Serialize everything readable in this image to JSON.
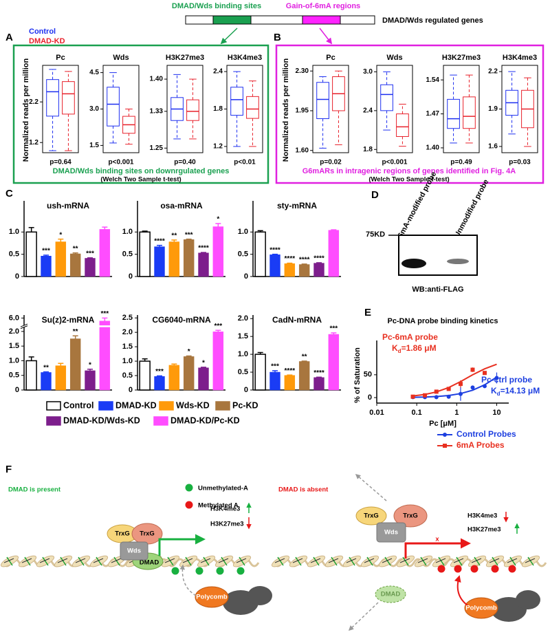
{
  "header": {
    "segments": [
      "DMAD/Wds binding sites",
      "Gain-of-6mA regions"
    ],
    "gene": "DMAD/Wds regulated genes"
  },
  "panel_letters": [
    "A",
    "B",
    "C",
    "D",
    "E",
    "F"
  ],
  "chart_data": [
    {
      "type": "box",
      "title": "Pc",
      "ylabel": "Normalized reads per million",
      "caption": "DMAD/Wds binding sites on downrgulated genes",
      "test": "(Welch Two Sample t-test)",
      "ylim": [
        0.95,
        3.1
      ],
      "yticks": [
        1.2,
        2.2
      ],
      "annotation": "p=0.64",
      "series": [
        {
          "name": "Control",
          "color": "#1d2ff0",
          "whisker_low": 1.0,
          "q1": 1.85,
          "median": 2.45,
          "q3": 2.75,
          "whisker_high": 3.0
        },
        {
          "name": "DMAD-KD",
          "color": "#e8202a",
          "whisker_low": 1.0,
          "q1": 1.9,
          "median": 2.4,
          "q3": 2.7,
          "whisker_high": 2.95
        }
      ]
    },
    {
      "type": "box",
      "title": "Wds",
      "ylim": [
        1.2,
        4.8
      ],
      "yticks": [
        1.5,
        {
          "value": 3,
          "label": "3.0"
        },
        4.5
      ],
      "annotation": "p<0.001",
      "series": [
        {
          "color": "#1d2ff0",
          "whisker_low": 1.6,
          "q1": 2.3,
          "median": 3.2,
          "q3": 3.9,
          "whisker_high": 4.5
        },
        {
          "color": "#e8202a",
          "whisker_low": 1.55,
          "q1": 2.0,
          "median": 2.35,
          "q3": 2.7,
          "whisker_high": 3.0
        }
      ]
    },
    {
      "type": "box",
      "title": "H3K27me3",
      "ylim": [
        1.24,
        1.43
      ],
      "yticks": [
        1.25,
        1.33,
        {
          "value": 1.4,
          "label": "1.40"
        }
      ],
      "annotation": "p=0.40",
      "series": [
        {
          "color": "#1d2ff0",
          "whisker_low": 1.27,
          "q1": 1.31,
          "median": 1.335,
          "q3": 1.36,
          "whisker_high": 1.41
        },
        {
          "color": "#e8202a",
          "whisker_low": 1.27,
          "q1": 1.31,
          "median": 1.33,
          "q3": 1.355,
          "whisker_high": 1.4
        }
      ]
    },
    {
      "type": "box",
      "title": "H3K4me3",
      "ylim": [
        1.1,
        2.5
      ],
      "yticks": [
        1.2,
        1.8,
        2.4
      ],
      "annotation": "p<0.01",
      "series": [
        {
          "color": "#1d2ff0",
          "whisker_low": 1.2,
          "q1": 1.7,
          "median": 1.95,
          "q3": 2.15,
          "whisker_high": 2.4
        },
        {
          "color": "#e8202a",
          "whisker_low": 1.2,
          "q1": 1.65,
          "median": 1.8,
          "q3": 2.0,
          "whisker_high": 2.25
        }
      ]
    },
    {
      "type": "box",
      "title": "Pc",
      "ylabel": "Normalized reads per million",
      "caption": "G6mARs in intragenic regions of genes identified in Fig. 4A",
      "test": "(Welch Two Sample t-test)",
      "ylim": [
        1.58,
        2.35
      ],
      "yticks": [
        {
          "value": 1.6,
          "label": "1.60"
        },
        1.95,
        {
          "value": 2.3,
          "label": "2.30"
        }
      ],
      "annotation": "p=0.02",
      "series": [
        {
          "color": "#1d2ff0",
          "whisker_low": 1.62,
          "q1": 1.88,
          "median": 2.05,
          "q3": 2.2,
          "whisker_high": 2.25
        },
        {
          "color": "#e8202a",
          "whisker_low": 1.65,
          "q1": 1.95,
          "median": 2.1,
          "q3": 2.25,
          "whisker_high": 2.3
        }
      ]
    },
    {
      "type": "box",
      "title": "Wds",
      "ylim": [
        1.75,
        3.1
      ],
      "yticks": [
        1.8,
        2.4,
        {
          "value": 3,
          "label": "3.0"
        }
      ],
      "annotation": "p<0.001",
      "series": [
        {
          "color": "#1d2ff0",
          "whisker_low": 2.1,
          "q1": 2.4,
          "median": 2.65,
          "q3": 2.8,
          "whisker_high": 3.0
        },
        {
          "color": "#e8202a",
          "whisker_low": 1.85,
          "q1": 2.0,
          "median": 2.15,
          "q3": 2.35,
          "whisker_high": 2.5
        }
      ]
    },
    {
      "type": "box",
      "title": "H3K27me3",
      "ylim": [
        1.39,
        1.57
      ],
      "yticks": [
        {
          "value": 1.4,
          "label": "1.40"
        },
        1.47,
        1.54
      ],
      "annotation": "p=0.49",
      "series": [
        {
          "color": "#1d2ff0",
          "whisker_low": 1.41,
          "q1": 1.44,
          "median": 1.46,
          "q3": 1.5,
          "whisker_high": 1.55
        },
        {
          "color": "#e8202a",
          "whisker_low": 1.41,
          "q1": 1.44,
          "median": 1.465,
          "q3": 1.505,
          "whisker_high": 1.55
        }
      ]
    },
    {
      "type": "box",
      "title": "H3K4me3",
      "ylim": [
        1.55,
        2.25
      ],
      "yticks": [
        1.6,
        1.9,
        2.2
      ],
      "annotation": "p=0.03",
      "series": [
        {
          "color": "#1d2ff0",
          "whisker_low": 1.7,
          "q1": 1.85,
          "median": 1.95,
          "q3": 2.05,
          "whisker_high": 2.2
        },
        {
          "color": "#e8202a",
          "whisker_low": 1.6,
          "q1": 1.75,
          "median": 1.9,
          "q3": 2.05,
          "whisker_high": 2.15
        }
      ]
    },
    {
      "type": "bar",
      "title": "ush-mRNA",
      "categories": [
        "Control",
        "DMAD-KD",
        "Wds-KD",
        "Pc-KD",
        "DMAD-KD/Wds-KD",
        "DMAD-KD/Pc-KD"
      ],
      "colors": [
        "#ffffff",
        "#1a3cf5",
        "#ff9a0a",
        "#a8763e",
        "#7d1e8c",
        "#ff4dff"
      ],
      "ylim": [
        0,
        1.7
      ],
      "yticks": [
        0,
        0.5,
        {
          "value": 1,
          "label": "1.0"
        }
      ],
      "values": [
        1.0,
        0.46,
        0.78,
        0.51,
        0.41,
        1.06
      ],
      "errors": [
        0.1,
        0.02,
        0.06,
        0.02,
        0.01,
        0.05
      ],
      "significance": [
        null,
        "***",
        "*",
        "**",
        "***",
        null
      ]
    },
    {
      "type": "bar",
      "title": "osa-mRNA",
      "colors": [
        "#ffffff",
        "#1a3cf5",
        "#ff9a0a",
        "#a8763e",
        "#7d1e8c",
        "#ff4dff"
      ],
      "ylim": [
        0,
        1.7
      ],
      "yticks": [
        0,
        0.5,
        {
          "value": 1,
          "label": "1.0"
        }
      ],
      "values": [
        1.0,
        0.67,
        0.78,
        0.83,
        0.53,
        1.12
      ],
      "errors": [
        0.02,
        0.03,
        0.04,
        0.01,
        0.01,
        0.07
      ],
      "significance": [
        null,
        "****",
        "**",
        "***",
        "****",
        "*"
      ]
    },
    {
      "type": "bar",
      "title": "sty-mRNA",
      "colors": [
        "#ffffff",
        "#1a3cf5",
        "#ff9a0a",
        "#a8763e",
        "#7d1e8c",
        "#ff4dff"
      ],
      "ylim": [
        0,
        1.7
      ],
      "yticks": [
        0,
        0.5,
        {
          "value": 1,
          "label": "1.0"
        }
      ],
      "values": [
        1.0,
        0.49,
        0.29,
        0.27,
        0.3,
        1.04
      ],
      "errors": [
        0.03,
        0.01,
        0.01,
        0.01,
        0.01,
        0.01
      ],
      "significance": [
        null,
        "****",
        "****",
        "****",
        "****",
        null
      ]
    },
    {
      "type": "bar",
      "title": "Su(z)2-mRNA",
      "colors": [
        "#ffffff",
        "#1a3cf5",
        "#ff9a0a",
        "#a8763e",
        "#7d1e8c",
        "#ff4dff"
      ],
      "ylim": [
        0,
        6.1
      ],
      "ybreak": [
        2.1,
        5.8
      ],
      "yticks": [
        0,
        0.5,
        {
          "value": 1,
          "label": "1.0"
        },
        1.5,
        {
          "value": 2,
          "label": "2.0"
        },
        {
          "value": 6,
          "label": "6.0"
        }
      ],
      "values": [
        1.0,
        0.6,
        0.83,
        1.75,
        0.66,
        5.9
      ],
      "errors": [
        0.13,
        0.02,
        0.08,
        0.1,
        0.05,
        0.1
      ],
      "significance": [
        null,
        "**",
        null,
        "**",
        "*",
        "***"
      ]
    },
    {
      "type": "bar",
      "title": "CG6040-mRNA",
      "colors": [
        "#ffffff",
        "#1a3cf5",
        "#ff9a0a",
        "#a8763e",
        "#7d1e8c",
        "#ff4dff"
      ],
      "ylim": [
        0,
        2.6
      ],
      "yticks": [
        0,
        0.5,
        {
          "value": 1,
          "label": "1.0"
        },
        1.5,
        {
          "value": 2,
          "label": "2.0"
        },
        2.5
      ],
      "values": [
        1.0,
        0.47,
        0.86,
        1.16,
        0.77,
        2.02
      ],
      "errors": [
        0.08,
        0.02,
        0.04,
        0.02,
        0.02,
        0.05
      ],
      "significance": [
        null,
        "***",
        null,
        "*",
        "*",
        "***"
      ]
    },
    {
      "type": "bar",
      "title": "CadN-mRNA",
      "colors": [
        "#ffffff",
        "#1a3cf5",
        "#ff9a0a",
        "#a8763e",
        "#7d1e8c",
        "#ff4dff"
      ],
      "ylim": [
        0,
        2.1
      ],
      "yticks": [
        0,
        0.5,
        {
          "value": 1,
          "label": "1.0"
        },
        1.5,
        {
          "value": 2,
          "label": "2.0"
        }
      ],
      "values": [
        1.0,
        0.5,
        0.41,
        0.8,
        0.35,
        1.56
      ],
      "errors": [
        0.05,
        0.04,
        0.01,
        0.01,
        0.01,
        0.04
      ],
      "significance": [
        null,
        "***",
        "****",
        "**",
        "****",
        "***"
      ]
    },
    {
      "type": "scatter",
      "title": "Pc-DNA probe binding kinetics",
      "xlabel": "Pc [μM]",
      "ylabel": "% of Saturation",
      "xscale": "log",
      "xlim": [
        0.01,
        20
      ],
      "xticks": [
        0.01,
        0.1,
        1,
        10
      ],
      "ylim": [
        -12,
        110
      ],
      "yticks": [
        0,
        50
      ],
      "series": [
        {
          "name": "Control Probes",
          "color": "#1d3fe0",
          "marker": "circle",
          "x": [
            0.08,
            0.16,
            0.31,
            0.63,
            1.25,
            2.5,
            5,
            10
          ],
          "values": [
            1,
            1,
            1,
            2,
            8,
            22,
            25,
            43
          ],
          "errors": [
            1,
            1,
            1,
            1,
            15,
            4,
            3,
            12
          ],
          "fit": {
            "x": [
              0.08,
              0.16,
              0.31,
              0.63,
              1.25,
              2.5,
              5,
              10
            ],
            "values": [
              0.6,
              1.2,
              2.3,
              4.6,
              8.8,
              16.2,
              28,
              45
            ]
          }
        },
        {
          "name": "6mA Probes",
          "color": "#e83020",
          "marker": "square",
          "x": [
            0.08,
            0.16,
            0.31,
            0.63,
            1.25,
            2.5,
            5
          ],
          "values": [
            2,
            5,
            13,
            19,
            30,
            61,
            54
          ],
          "errors": [
            2,
            3,
            3,
            4,
            8,
            5,
            2
          ],
          "fit": {
            "x": [
              0.08,
              0.16,
              0.31,
              0.63,
              1.25,
              2.5,
              5,
              10
            ],
            "values": [
              3.6,
              6.9,
              12.4,
              22,
              35,
              50,
              63,
              73
            ]
          }
        }
      ],
      "annotations": [
        {
          "label": "Pc-6mA probe",
          "symbol": "K",
          "subscript": "d",
          "kd": "=1.86 μM",
          "color": "#e83020"
        },
        {
          "label": "Pc-ctrl probe",
          "symbol": "K",
          "subscript": "d",
          "kd": "=14.13 μM",
          "color": "#1d3fe0"
        }
      ]
    }
  ],
  "panel_d": {
    "lanes": [
      "6mA-modified probe",
      "Unmodified probe"
    ],
    "marker": "75KD",
    "antibody": "WB:anti-FLAG"
  },
  "diagram_f": {
    "legend": [
      "Unmethylated-A",
      "Methylated A"
    ],
    "left": {
      "state": "DMAD is present",
      "trxg": [
        "TrxG",
        "TrxG"
      ],
      "wds": "Wds",
      "dmad": "DMAD",
      "marks": [
        "H3K4me3",
        "H3K27me3"
      ],
      "polycomb": "Polycomb"
    },
    "right": {
      "state": "DMAD is absent",
      "trxg": [
        "TrxG",
        "TrxG"
      ],
      "wds": "Wds",
      "marks": [
        "H3K4me3",
        "H3K27me3"
      ],
      "blocked": "x",
      "polycomb": "Polycomb",
      "dmad": "DMAD"
    }
  }
}
